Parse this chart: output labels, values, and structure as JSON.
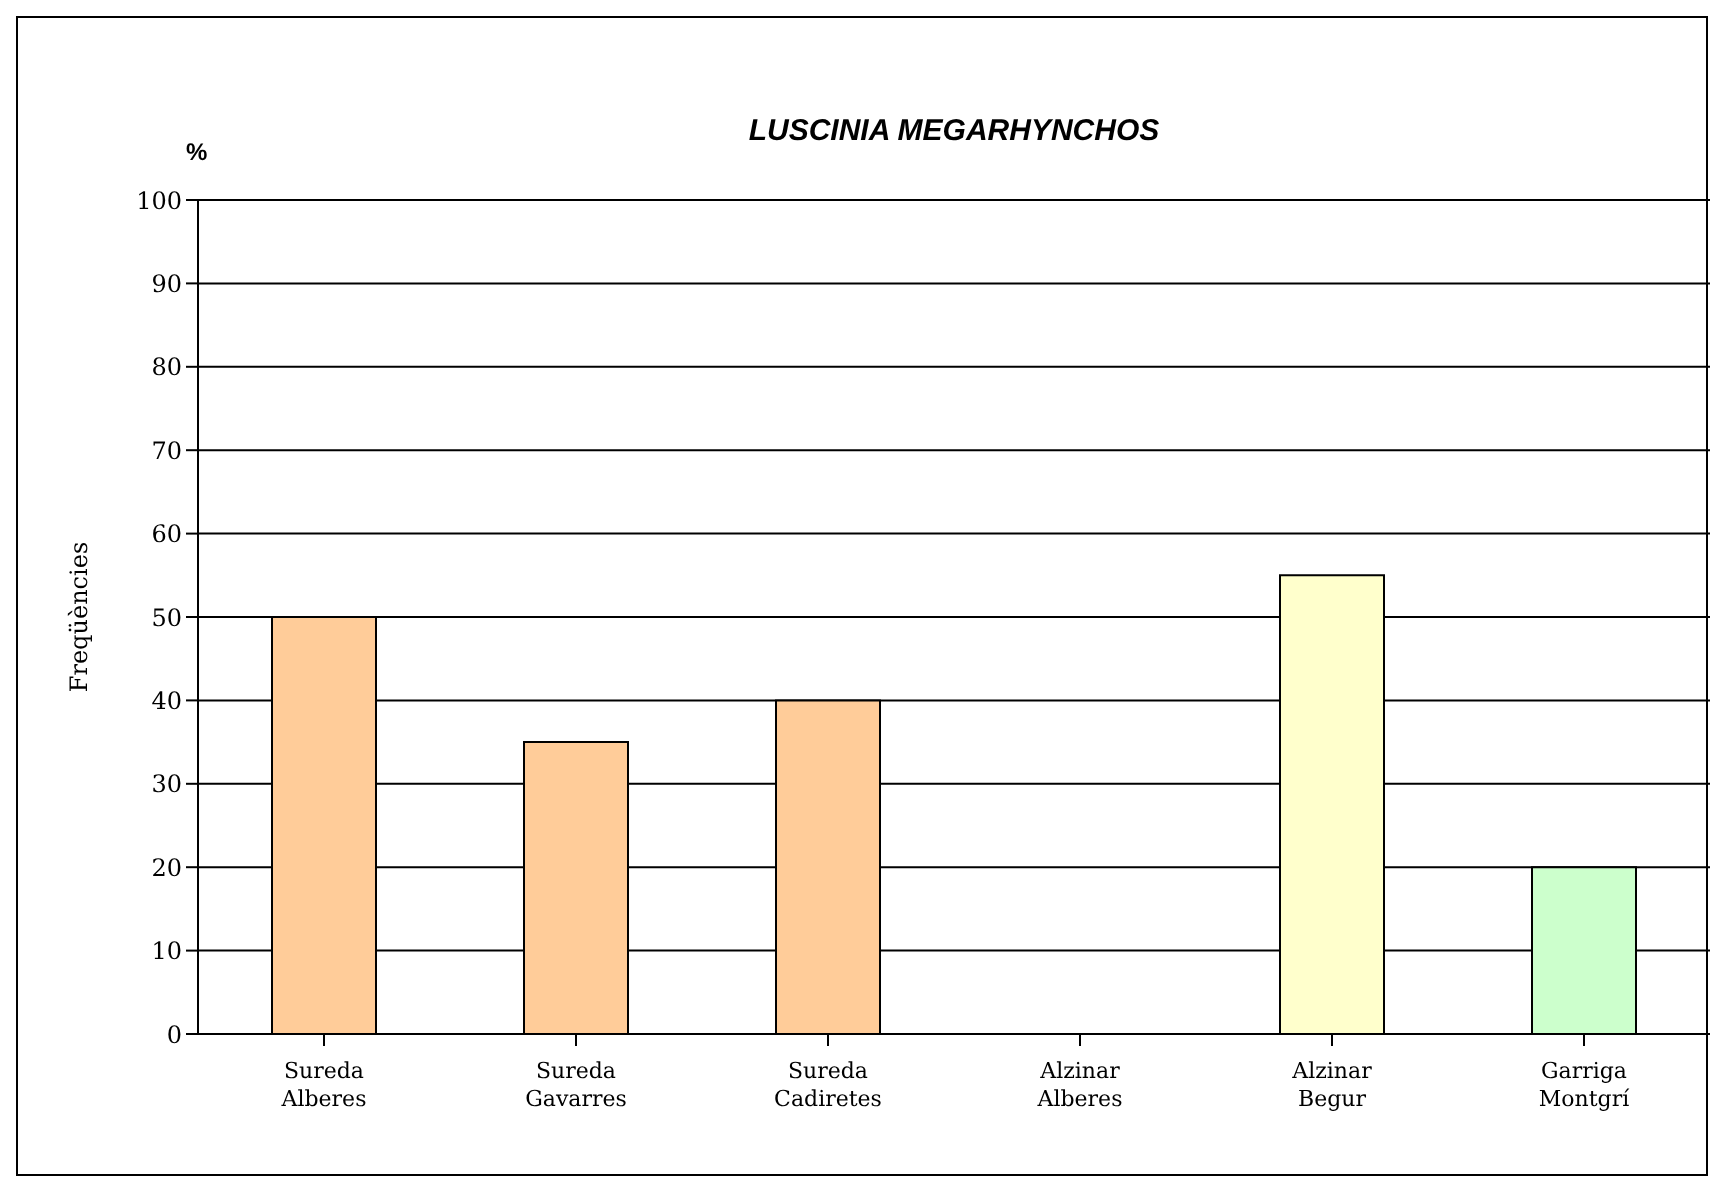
{
  "chart_data": {
    "type": "bar",
    "title": "LUSCINIA MEGARHYNCHOS",
    "ylabel": "Freqüències",
    "annotations": [
      "%"
    ],
    "categories": [
      "Sureda Alberes",
      "Sureda Gavarres",
      "Sureda Cadiretes",
      "Alzinar Alberes",
      "Alzinar Begur",
      "Garriga Montgrí"
    ],
    "values": [
      50,
      35,
      40,
      0,
      55,
      20
    ],
    "colors": [
      "#ffcc99",
      "#ffcc99",
      "#ffcc99",
      "#ffcc99",
      "#ffffcc",
      "#ccffcc"
    ],
    "ylim": [
      0,
      100
    ],
    "yticks": [
      0,
      10,
      20,
      30,
      40,
      50,
      60,
      70,
      80,
      90,
      100
    ],
    "grid": "y"
  }
}
